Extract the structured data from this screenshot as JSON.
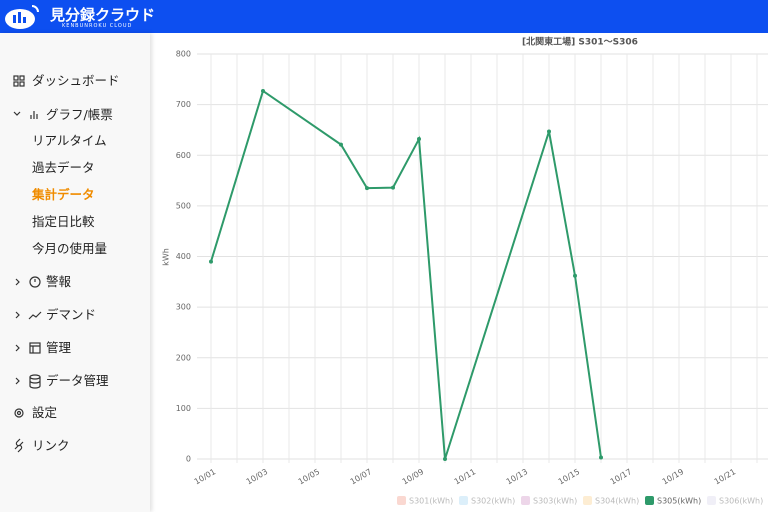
{
  "header": {
    "logo_title": "見分録クラウド",
    "logo_subtitle": "KENBUNROKU CLOUD"
  },
  "sidebar": {
    "items": [
      {
        "label": "ダッシュボード"
      },
      {
        "label": "グラフ/帳票",
        "children": [
          {
            "label": "リアルタイム"
          },
          {
            "label": "過去データ"
          },
          {
            "label": "集計データ",
            "active": true
          },
          {
            "label": "指定日比較"
          },
          {
            "label": "今月の使用量"
          }
        ]
      },
      {
        "label": "警報"
      },
      {
        "label": "デマンド"
      },
      {
        "label": "管理"
      },
      {
        "label": "データ管理"
      },
      {
        "label": "設定"
      },
      {
        "label": "リンク"
      }
    ]
  },
  "chart_data": {
    "type": "line",
    "title": "[北関東工場] S301～S306",
    "y_label": "kWh",
    "categories": [
      "10/01",
      null,
      "10/03",
      null,
      "10/05",
      null,
      "10/07",
      null,
      "10/09",
      null,
      "10/11",
      null,
      "10/13",
      null,
      "10/15",
      null,
      "10/17",
      null,
      "10/19",
      null,
      "10/21",
      null
    ],
    "series": [
      {
        "name": "S301(kWh)",
        "color": "#f4a99b",
        "hidden": true
      },
      {
        "name": "S302(kWh)",
        "color": "#b3dcf5",
        "hidden": true
      },
      {
        "name": "S303(kWh)",
        "color": "#d9a5d0",
        "hidden": true
      },
      {
        "name": "S304(kWh)",
        "color": "#fbd9a0",
        "hidden": true
      },
      {
        "name": "S305(kWh)",
        "color": "#2e9a6a",
        "hidden": false,
        "values": [
          390,
          null,
          727,
          null,
          null,
          621,
          535,
          536,
          632,
          0,
          null,
          null,
          null,
          647,
          362,
          3,
          null,
          null,
          null,
          null,
          null,
          null
        ]
      },
      {
        "name": "S306(kWh)",
        "color": "#e0dcef",
        "hidden": true
      }
    ],
    "ylim": [
      0,
      800
    ],
    "yticks": [
      0,
      100,
      200,
      300,
      400,
      500,
      600,
      700,
      800
    ],
    "grid": true,
    "span_gaps": true,
    "legend": "bottom"
  }
}
